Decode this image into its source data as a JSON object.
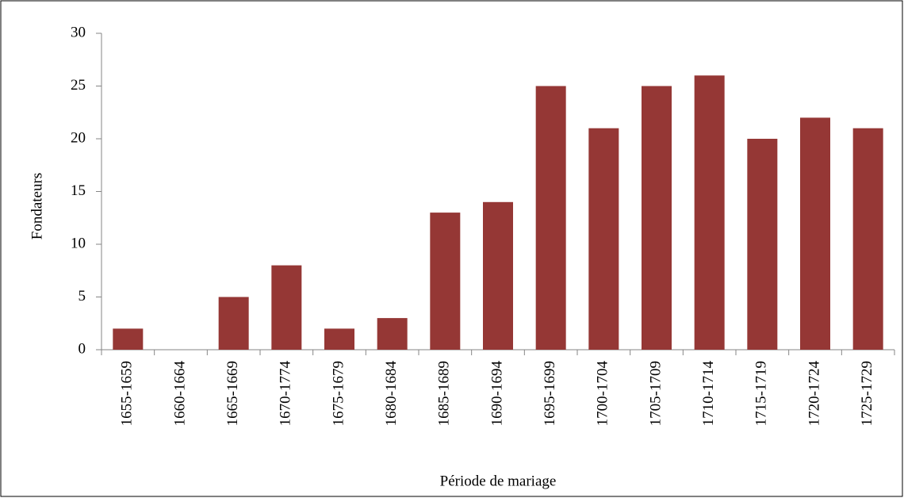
{
  "chart_data": {
    "type": "bar",
    "x_label": "Période de mariage",
    "y_label": "Fondateurs",
    "categories": [
      "1655-1659",
      "1660-1664",
      "1665-1669",
      "1670-1774",
      "1675-1679",
      "1680-1684",
      "1685-1689",
      "1690-1694",
      "1695-1699",
      "1700-1704",
      "1705-1709",
      "1710-1714",
      "1715-1719",
      "1720-1724",
      "1725-1729"
    ],
    "values": [
      2,
      0,
      5,
      8,
      2,
      3,
      13,
      14,
      25,
      21,
      25,
      26,
      20,
      22,
      21
    ],
    "color": "#953735",
    "ylim": [
      0,
      30
    ],
    "yticks": [
      0,
      5,
      10,
      15,
      20,
      25,
      30
    ],
    "grid": false
  }
}
